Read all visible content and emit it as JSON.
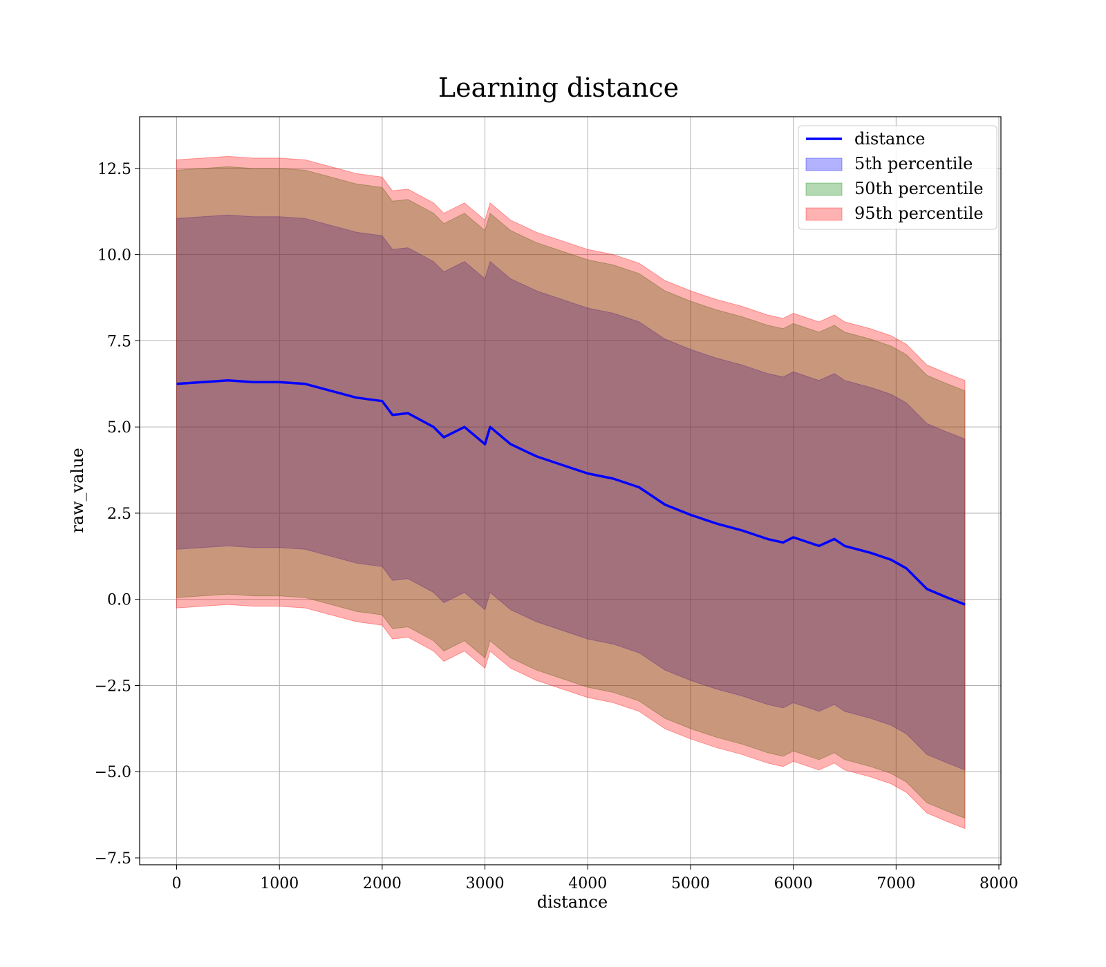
{
  "chart_data": {
    "type": "area",
    "title": "Learning distance",
    "xlabel": "distance",
    "ylabel": "raw_value",
    "xlim": [
      -360,
      8020
    ],
    "ylim": [
      -7.7,
      14.0
    ],
    "xticks": [
      0,
      1000,
      2000,
      3000,
      4000,
      5000,
      6000,
      7000,
      8000
    ],
    "yticks": [
      -7.5,
      -5.0,
      -2.5,
      0.0,
      2.5,
      5.0,
      7.5,
      10.0,
      12.5
    ],
    "xtick_labels": [
      "0",
      "1000",
      "2000",
      "3000",
      "4000",
      "5000",
      "6000",
      "7000",
      "8000"
    ],
    "ytick_labels": [
      "−7.5",
      "−5.0",
      "−2.5",
      "0.0",
      "2.5",
      "5.0",
      "7.5",
      "10.0",
      "12.5"
    ],
    "grid": true,
    "legend_position": "top-right",
    "x": [
      0,
      250,
      500,
      750,
      1000,
      1250,
      1500,
      1750,
      2000,
      2100,
      2250,
      2500,
      2600,
      2800,
      3000,
      3050,
      3250,
      3500,
      3750,
      4000,
      4250,
      4500,
      4750,
      5000,
      5250,
      5500,
      5750,
      5900,
      6000,
      6250,
      6400,
      6500,
      6750,
      6950,
      7100,
      7300,
      7500,
      7670
    ],
    "series": [
      {
        "name": "distance",
        "kind": "line",
        "color": "#0000ff",
        "values": [
          6.25,
          6.3,
          6.35,
          6.3,
          6.3,
          6.25,
          6.05,
          5.85,
          5.75,
          5.35,
          5.4,
          5.0,
          4.7,
          5.0,
          4.5,
          5.0,
          4.5,
          4.15,
          3.9,
          3.65,
          3.5,
          3.25,
          2.75,
          2.45,
          2.2,
          2.0,
          1.75,
          1.65,
          1.8,
          1.55,
          1.75,
          1.55,
          1.35,
          1.15,
          0.9,
          0.3,
          0.05,
          -0.15
        ]
      },
      {
        "name": "5th percentile",
        "kind": "band",
        "color": "#0000ff",
        "opacity": 0.3,
        "lower": [
          1.45,
          1.5,
          1.55,
          1.5,
          1.5,
          1.45,
          1.25,
          1.05,
          0.95,
          0.55,
          0.6,
          0.2,
          -0.1,
          0.2,
          -0.3,
          0.2,
          -0.3,
          -0.65,
          -0.9,
          -1.15,
          -1.3,
          -1.55,
          -2.05,
          -2.35,
          -2.6,
          -2.8,
          -3.05,
          -3.15,
          -3.0,
          -3.25,
          -3.05,
          -3.25,
          -3.45,
          -3.65,
          -3.9,
          -4.5,
          -4.75,
          -4.95
        ],
        "upper": [
          11.05,
          11.1,
          11.15,
          11.1,
          11.1,
          11.05,
          10.85,
          10.65,
          10.55,
          10.15,
          10.2,
          9.8,
          9.5,
          9.8,
          9.3,
          9.8,
          9.3,
          8.95,
          8.7,
          8.45,
          8.3,
          8.05,
          7.55,
          7.25,
          7.0,
          6.8,
          6.55,
          6.45,
          6.6,
          6.35,
          6.55,
          6.35,
          6.15,
          5.95,
          5.7,
          5.1,
          4.85,
          4.65
        ]
      },
      {
        "name": "50th percentile",
        "kind": "band",
        "color": "#008000",
        "opacity": 0.3,
        "lower": [
          0.05,
          0.1,
          0.15,
          0.1,
          0.1,
          0.05,
          -0.15,
          -0.35,
          -0.45,
          -0.85,
          -0.8,
          -1.2,
          -1.5,
          -1.2,
          -1.7,
          -1.2,
          -1.7,
          -2.05,
          -2.3,
          -2.55,
          -2.7,
          -2.95,
          -3.45,
          -3.75,
          -4.0,
          -4.2,
          -4.45,
          -4.55,
          -4.4,
          -4.65,
          -4.45,
          -4.65,
          -4.85,
          -5.05,
          -5.3,
          -5.9,
          -6.15,
          -6.35
        ],
        "upper": [
          12.45,
          12.5,
          12.55,
          12.5,
          12.5,
          12.45,
          12.25,
          12.05,
          11.95,
          11.55,
          11.6,
          11.2,
          10.9,
          11.2,
          10.7,
          11.2,
          10.7,
          10.35,
          10.1,
          9.85,
          9.7,
          9.45,
          8.95,
          8.65,
          8.4,
          8.2,
          7.95,
          7.85,
          8.0,
          7.75,
          7.95,
          7.75,
          7.55,
          7.35,
          7.1,
          6.5,
          6.25,
          6.05
        ]
      },
      {
        "name": "95th percentile",
        "kind": "band",
        "color": "#ff0000",
        "opacity": 0.3,
        "lower": [
          -0.25,
          -0.2,
          -0.15,
          -0.2,
          -0.2,
          -0.25,
          -0.45,
          -0.65,
          -0.75,
          -1.15,
          -1.1,
          -1.5,
          -1.8,
          -1.5,
          -2.0,
          -1.5,
          -2.0,
          -2.35,
          -2.6,
          -2.85,
          -3.0,
          -3.25,
          -3.75,
          -4.05,
          -4.3,
          -4.5,
          -4.75,
          -4.85,
          -4.7,
          -4.95,
          -4.75,
          -4.95,
          -5.15,
          -5.35,
          -5.6,
          -6.2,
          -6.45,
          -6.65
        ],
        "upper": [
          12.75,
          12.8,
          12.85,
          12.8,
          12.8,
          12.75,
          12.55,
          12.35,
          12.25,
          11.85,
          11.9,
          11.5,
          11.2,
          11.5,
          11.0,
          11.5,
          11.0,
          10.65,
          10.4,
          10.15,
          10.0,
          9.75,
          9.25,
          8.95,
          8.7,
          8.5,
          8.25,
          8.15,
          8.3,
          8.05,
          8.25,
          8.05,
          7.85,
          7.65,
          7.4,
          6.8,
          6.55,
          6.35
        ]
      }
    ]
  }
}
